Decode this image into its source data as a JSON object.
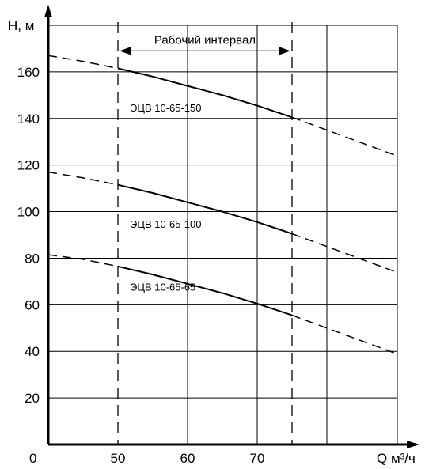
{
  "chart_data": {
    "type": "line",
    "xlabel": "Q м³/ч",
    "ylabel": "H, м",
    "origin_label": "0",
    "xlim": [
      40,
      80
    ],
    "ylim": [
      0,
      180
    ],
    "x_ticks": [
      50,
      60,
      70
    ],
    "x_grid": [
      50,
      60,
      70,
      75,
      80
    ],
    "y_ticks": [
      20,
      40,
      60,
      80,
      100,
      120,
      140,
      160
    ],
    "grid": true,
    "interval": {
      "label": "Рабочий интервал",
      "x_start": 50,
      "x_end": 75
    },
    "series": [
      {
        "name": "ЭЦВ 10-65-150",
        "label_at": [
          50,
          143
        ],
        "points": [
          [
            40,
            167
          ],
          [
            45,
            164.5
          ],
          [
            50,
            161.5
          ],
          [
            55,
            158
          ],
          [
            60,
            154
          ],
          [
            65,
            150
          ],
          [
            70,
            145.5
          ],
          [
            75,
            140.5
          ],
          [
            80,
            135
          ],
          [
            85,
            129.5
          ],
          [
            90,
            124
          ]
        ]
      },
      {
        "name": "ЭЦВ 10-65-100",
        "label_at": [
          50,
          93
        ],
        "points": [
          [
            40,
            117
          ],
          [
            45,
            114.5
          ],
          [
            50,
            111.5
          ],
          [
            55,
            108
          ],
          [
            60,
            104
          ],
          [
            65,
            100
          ],
          [
            70,
            95.5
          ],
          [
            75,
            90.5
          ],
          [
            80,
            85
          ],
          [
            85,
            79.5
          ],
          [
            90,
            74
          ]
        ]
      },
      {
        "name": "ЭЦВ 10-65-65",
        "label_at": [
          50,
          66
        ],
        "points": [
          [
            40,
            81.5
          ],
          [
            45,
            79.5
          ],
          [
            50,
            76.5
          ],
          [
            55,
            73
          ],
          [
            60,
            69
          ],
          [
            65,
            65
          ],
          [
            70,
            60.5
          ],
          [
            75,
            55.5
          ],
          [
            80,
            50
          ],
          [
            85,
            44.5
          ],
          [
            90,
            39
          ]
        ]
      }
    ]
  }
}
